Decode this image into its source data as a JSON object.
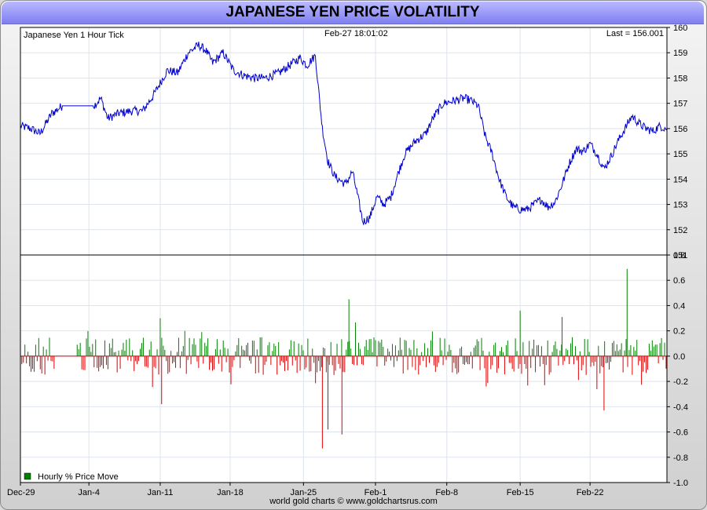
{
  "title": "JAPANESE YEN PRICE VOLATILITY",
  "credit": "world gold charts © www.goldchartsrus.com",
  "chart_data": [
    {
      "type": "line",
      "series_label": "Japanese Yen 1 Hour Tick",
      "timestamp": "Feb-27  18:01:02",
      "last_label": "Last = 156.001",
      "ylim": [
        151,
        160
      ],
      "yticks": [
        151,
        152,
        153,
        154,
        155,
        156,
        157,
        158,
        159,
        160
      ],
      "color": "#0000cc",
      "anchors": [
        [
          0,
          156.1
        ],
        [
          1.5,
          156.0
        ],
        [
          2.8,
          155.8
        ],
        [
          4.5,
          156.6
        ],
        [
          6,
          156.9
        ],
        [
          8,
          156.9
        ],
        [
          10.5,
          156.9
        ],
        [
          11.5,
          157.2
        ],
        [
          12.5,
          156.4
        ],
        [
          14,
          156.6
        ],
        [
          16,
          156.7
        ],
        [
          17.5,
          156.7
        ],
        [
          19,
          157.3
        ],
        [
          21,
          158.3
        ],
        [
          22.5,
          158.2
        ],
        [
          24,
          159.0
        ],
        [
          25.5,
          159.3
        ],
        [
          26.5,
          159.1
        ],
        [
          27.5,
          158.6
        ],
        [
          29,
          159.0
        ],
        [
          30.5,
          158.3
        ],
        [
          32,
          158.1
        ],
        [
          33.5,
          158.0
        ],
        [
          35,
          158.0
        ],
        [
          37,
          158.2
        ],
        [
          38.5,
          158.5
        ],
        [
          40,
          158.8
        ],
        [
          41,
          158.5
        ],
        [
          42.2,
          158.9
        ],
        [
          42.6,
          157.7
        ],
        [
          43.2,
          156.0
        ],
        [
          44,
          154.7
        ],
        [
          45,
          154.1
        ],
        [
          46.5,
          153.8
        ],
        [
          47.5,
          154.3
        ],
        [
          48.2,
          153.4
        ],
        [
          49,
          152.3
        ],
        [
          50,
          152.5
        ],
        [
          51,
          153.3
        ],
        [
          52,
          153.0
        ],
        [
          53,
          153.3
        ],
        [
          54,
          154.2
        ],
        [
          55,
          155.0
        ],
        [
          56.5,
          155.5
        ],
        [
          58,
          155.8
        ],
        [
          59,
          156.4
        ],
        [
          60.5,
          157.0
        ],
        [
          62,
          157.1
        ],
        [
          63.5,
          157.2
        ],
        [
          64.5,
          157.1
        ],
        [
          65.5,
          156.9
        ],
        [
          66.5,
          155.7
        ],
        [
          67.5,
          155.0
        ],
        [
          68.5,
          154.0
        ],
        [
          69.5,
          153.3
        ],
        [
          70.5,
          152.9
        ],
        [
          71.5,
          152.8
        ],
        [
          72.5,
          152.8
        ],
        [
          73.5,
          153.0
        ],
        [
          74.5,
          153.2
        ],
        [
          75.5,
          152.9
        ],
        [
          76.5,
          153.1
        ],
        [
          77.5,
          153.8
        ],
        [
          78.5,
          154.6
        ],
        [
          79.5,
          155.2
        ],
        [
          80.5,
          155.1
        ],
        [
          81.5,
          155.4
        ],
        [
          82.5,
          155.0
        ],
        [
          83.5,
          154.4
        ],
        [
          84.5,
          154.9
        ],
        [
          85.5,
          155.5
        ],
        [
          86.5,
          156.0
        ],
        [
          87.5,
          156.5
        ],
        [
          88.5,
          156.2
        ],
        [
          89.5,
          156.0
        ],
        [
          90.5,
          155.9
        ],
        [
          91.5,
          156.1
        ],
        [
          92.5,
          156.0
        ]
      ]
    },
    {
      "type": "bar",
      "legend": "Hourly % Price Move",
      "ylim": [
        -1.0,
        0.8
      ],
      "yticks": [
        "0.8",
        "0.6",
        "0.4",
        "0.2",
        "0.0",
        "-0.2",
        "-0.4",
        "-0.6",
        "-0.8",
        "-1.0"
      ],
      "ytick_values": [
        0.8,
        0.6,
        0.4,
        0.2,
        0.0,
        -0.2,
        -0.4,
        -0.6,
        -0.8,
        -1.0
      ],
      "positive_color": "#008000",
      "negative_color": "#dd0000",
      "typical_magnitude": 0.12,
      "gap_days": [
        [
          5.0,
          8.0
        ]
      ],
      "spikes": [
        [
          20,
          0.3
        ],
        [
          20.2,
          -0.38
        ],
        [
          43.2,
          -0.73
        ],
        [
          44,
          -0.58
        ],
        [
          46,
          -0.62
        ],
        [
          47,
          0.45
        ],
        [
          71.5,
          0.36
        ],
        [
          77.5,
          0.31
        ],
        [
          83.5,
          -0.43
        ],
        [
          86.8,
          0.69
        ]
      ]
    }
  ],
  "x_axis": {
    "labels": [
      "Dec-29",
      "Jan-4",
      "Jan-11",
      "Jan-18",
      "Jan-25",
      "Feb-1",
      "Feb-8",
      "Feb-15",
      "Feb-22"
    ],
    "positions": [
      0,
      9.8,
      20,
      30,
      40.5,
      50.8,
      61,
      71.5,
      81.5
    ],
    "range": [
      0,
      92.5
    ]
  }
}
